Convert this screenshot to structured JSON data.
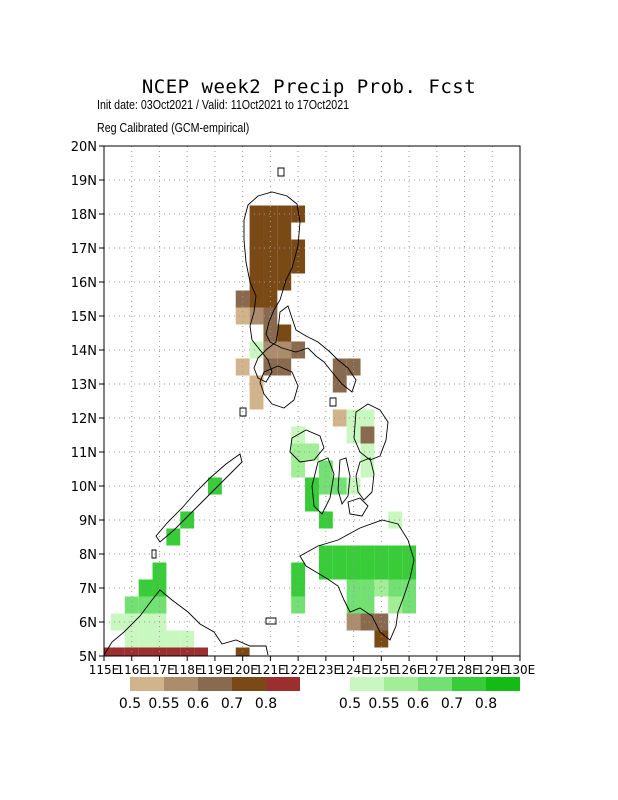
{
  "title": "NCEP week2 Precip Prob. Fcst",
  "subtitle_line1": "Init date: 03Oct2021 / Valid: 11Oct2021 to 17Oct2021",
  "subtitle_line2": "Reg Calibrated (GCM-empirical)",
  "map": {
    "lon_range": [
      115,
      130
    ],
    "lat_range": [
      5,
      20
    ],
    "lat_ticks": [
      "5N",
      "6N",
      "7N",
      "8N",
      "9N",
      "10N",
      "11N",
      "12N",
      "13N",
      "14N",
      "15N",
      "16N",
      "17N",
      "18N",
      "19N",
      "20N"
    ],
    "lon_ticks": [
      "115E",
      "116E",
      "117E",
      "118E",
      "119E",
      "120E",
      "121E",
      "122E",
      "123E",
      "124E",
      "125E",
      "126E",
      "127E",
      "128E",
      "129E",
      "130E"
    ],
    "grid": "dotted",
    "cell_size_deg": 0.5
  },
  "dry_legend": {
    "labels": [
      "0.5",
      "0.55",
      "0.6",
      "0.7",
      "0.8"
    ],
    "colors": [
      "#d2b48c",
      "#ac8c6c",
      "#8a6a4e",
      "#7a4a16",
      "#9b2e2e"
    ]
  },
  "wet_legend": {
    "labels": [
      "0.5",
      "0.55",
      "0.6",
      "0.7",
      "0.8"
    ],
    "colors": [
      "#c8f8c0",
      "#a2ee96",
      "#72e072",
      "#38cc38",
      "#14bb14"
    ]
  },
  "chart_data": {
    "type": "heatmap",
    "title": "NCEP week2 Precip Prob. Fcst",
    "units": "probability",
    "cells": [
      {
        "lon": 120.5,
        "lat": 18,
        "cat": "dry",
        "p": 0.7
      },
      {
        "lon": 121,
        "lat": 18,
        "cat": "dry",
        "p": 0.7
      },
      {
        "lon": 121.5,
        "lat": 18,
        "cat": "dry",
        "p": 0.7
      },
      {
        "lon": 122,
        "lat": 18,
        "cat": "dry",
        "p": 0.7
      },
      {
        "lon": 120.5,
        "lat": 17.5,
        "cat": "dry",
        "p": 0.7
      },
      {
        "lon": 121,
        "lat": 17.5,
        "cat": "dry",
        "p": 0.7
      },
      {
        "lon": 121.5,
        "lat": 17.5,
        "cat": "dry",
        "p": 0.7
      },
      {
        "lon": 120.5,
        "lat": 17,
        "cat": "dry",
        "p": 0.7
      },
      {
        "lon": 121,
        "lat": 17,
        "cat": "dry",
        "p": 0.7
      },
      {
        "lon": 121.5,
        "lat": 17,
        "cat": "dry",
        "p": 0.7
      },
      {
        "lon": 122,
        "lat": 17,
        "cat": "dry",
        "p": 0.7
      },
      {
        "lon": 120.5,
        "lat": 16.5,
        "cat": "dry",
        "p": 0.7
      },
      {
        "lon": 121,
        "lat": 16.5,
        "cat": "dry",
        "p": 0.7
      },
      {
        "lon": 121.5,
        "lat": 16.5,
        "cat": "dry",
        "p": 0.7
      },
      {
        "lon": 122,
        "lat": 16.5,
        "cat": "dry",
        "p": 0.7
      },
      {
        "lon": 120.5,
        "lat": 16,
        "cat": "dry",
        "p": 0.7
      },
      {
        "lon": 121,
        "lat": 16,
        "cat": "dry",
        "p": 0.7
      },
      {
        "lon": 121.5,
        "lat": 16,
        "cat": "dry",
        "p": 0.7
      },
      {
        "lon": 120,
        "lat": 15.5,
        "cat": "dry",
        "p": 0.6
      },
      {
        "lon": 120.5,
        "lat": 15.5,
        "cat": "dry",
        "p": 0.7
      },
      {
        "lon": 121,
        "lat": 15.5,
        "cat": "dry",
        "p": 0.7
      },
      {
        "lon": 120,
        "lat": 15,
        "cat": "dry",
        "p": 0.5
      },
      {
        "lon": 120.5,
        "lat": 15,
        "cat": "dry",
        "p": 0.55
      },
      {
        "lon": 121,
        "lat": 15,
        "cat": "dry",
        "p": 0.6
      },
      {
        "lon": 121,
        "lat": 14.5,
        "cat": "dry",
        "p": 0.6
      },
      {
        "lon": 121.5,
        "lat": 14.5,
        "cat": "dry",
        "p": 0.7
      },
      {
        "lon": 120.5,
        "lat": 14,
        "cat": "wet",
        "p": 0.5
      },
      {
        "lon": 121,
        "lat": 14,
        "cat": "dry",
        "p": 0.55
      },
      {
        "lon": 121.5,
        "lat": 14,
        "cat": "dry",
        "p": 0.55
      },
      {
        "lon": 122,
        "lat": 14,
        "cat": "dry",
        "p": 0.6
      },
      {
        "lon": 120,
        "lat": 13.5,
        "cat": "dry",
        "p": 0.5
      },
      {
        "lon": 121,
        "lat": 13.5,
        "cat": "dry",
        "p": 0.6
      },
      {
        "lon": 121.5,
        "lat": 13.5,
        "cat": "dry",
        "p": 0.6
      },
      {
        "lon": 120.5,
        "lat": 13,
        "cat": "dry",
        "p": 0.5
      },
      {
        "lon": 120.5,
        "lat": 12.5,
        "cat": "dry",
        "p": 0.5
      },
      {
        "lon": 123.5,
        "lat": 13.5,
        "cat": "dry",
        "p": 0.6
      },
      {
        "lon": 124,
        "lat": 13.5,
        "cat": "dry",
        "p": 0.6
      },
      {
        "lon": 123.5,
        "lat": 13,
        "cat": "dry",
        "p": 0.6
      },
      {
        "lon": 123.5,
        "lat": 12,
        "cat": "dry",
        "p": 0.5
      },
      {
        "lon": 124.5,
        "lat": 11.5,
        "cat": "dry",
        "p": 0.6
      },
      {
        "lon": 124,
        "lat": 12,
        "cat": "wet",
        "p": 0.5
      },
      {
        "lon": 124.5,
        "lat": 12,
        "cat": "wet",
        "p": 0.5
      },
      {
        "lon": 124,
        "lat": 11.5,
        "cat": "wet",
        "p": 0.5
      },
      {
        "lon": 124.5,
        "lat": 11,
        "cat": "wet",
        "p": 0.5
      },
      {
        "lon": 124.5,
        "lat": 10.5,
        "cat": "wet",
        "p": 0.5
      },
      {
        "lon": 122,
        "lat": 11.5,
        "cat": "wet",
        "p": 0.5
      },
      {
        "lon": 122,
        "lat": 11,
        "cat": "wet",
        "p": 0.55
      },
      {
        "lon": 122.5,
        "lat": 11,
        "cat": "wet",
        "p": 0.55
      },
      {
        "lon": 122,
        "lat": 10.5,
        "cat": "wet",
        "p": 0.55
      },
      {
        "lon": 123,
        "lat": 10.5,
        "cat": "wet",
        "p": 0.6
      },
      {
        "lon": 123,
        "lat": 10,
        "cat": "wet",
        "p": 0.6
      },
      {
        "lon": 123.5,
        "lat": 10,
        "cat": "wet",
        "p": 0.6
      },
      {
        "lon": 122.5,
        "lat": 10,
        "cat": "wet",
        "p": 0.7
      },
      {
        "lon": 124,
        "lat": 10,
        "cat": "wet",
        "p": 0.5
      },
      {
        "lon": 122.5,
        "lat": 9.5,
        "cat": "wet",
        "p": 0.7
      },
      {
        "lon": 123,
        "lat": 9,
        "cat": "wet",
        "p": 0.7
      },
      {
        "lon": 119,
        "lat": 10,
        "cat": "wet",
        "p": 0.7
      },
      {
        "lon": 118,
        "lat": 9,
        "cat": "wet",
        "p": 0.7
      },
      {
        "lon": 117.5,
        "lat": 8.5,
        "cat": "wet",
        "p": 0.7
      },
      {
        "lon": 125.5,
        "lat": 9,
        "cat": "wet",
        "p": 0.5
      },
      {
        "lon": 123,
        "lat": 8,
        "cat": "wet",
        "p": 0.7
      },
      {
        "lon": 123.5,
        "lat": 8,
        "cat": "wet",
        "p": 0.7
      },
      {
        "lon": 124,
        "lat": 8,
        "cat": "wet",
        "p": 0.7
      },
      {
        "lon": 124.5,
        "lat": 8,
        "cat": "wet",
        "p": 0.7
      },
      {
        "lon": 125,
        "lat": 8,
        "cat": "wet",
        "p": 0.7
      },
      {
        "lon": 125.5,
        "lat": 8,
        "cat": "wet",
        "p": 0.7
      },
      {
        "lon": 126,
        "lat": 8,
        "cat": "wet",
        "p": 0.7
      },
      {
        "lon": 123,
        "lat": 7.5,
        "cat": "wet",
        "p": 0.7
      },
      {
        "lon": 123.5,
        "lat": 7.5,
        "cat": "wet",
        "p": 0.7
      },
      {
        "lon": 124,
        "lat": 7.5,
        "cat": "wet",
        "p": 0.7
      },
      {
        "lon": 124.5,
        "lat": 7.5,
        "cat": "wet",
        "p": 0.7
      },
      {
        "lon": 125,
        "lat": 7.5,
        "cat": "wet",
        "p": 0.7
      },
      {
        "lon": 125.5,
        "lat": 7.5,
        "cat": "wet",
        "p": 0.7
      },
      {
        "lon": 126,
        "lat": 7.5,
        "cat": "wet",
        "p": 0.7
      },
      {
        "lon": 124,
        "lat": 7,
        "cat": "wet",
        "p": 0.6
      },
      {
        "lon": 124.5,
        "lat": 7,
        "cat": "wet",
        "p": 0.6
      },
      {
        "lon": 125,
        "lat": 7,
        "cat": "wet",
        "p": 0.55
      },
      {
        "lon": 125.5,
        "lat": 7,
        "cat": "wet",
        "p": 0.6
      },
      {
        "lon": 126,
        "lat": 7,
        "cat": "wet",
        "p": 0.6
      },
      {
        "lon": 124,
        "lat": 6.5,
        "cat": "wet",
        "p": 0.6
      },
      {
        "lon": 124.5,
        "lat": 6.5,
        "cat": "wet",
        "p": 0.6
      },
      {
        "lon": 125.5,
        "lat": 6.5,
        "cat": "wet",
        "p": 0.55
      },
      {
        "lon": 126,
        "lat": 6.5,
        "cat": "wet",
        "p": 0.6
      },
      {
        "lon": 122,
        "lat": 7.5,
        "cat": "wet",
        "p": 0.7
      },
      {
        "lon": 122,
        "lat": 7,
        "cat": "wet",
        "p": 0.7
      },
      {
        "lon": 122,
        "lat": 6.5,
        "cat": "wet",
        "p": 0.6
      },
      {
        "lon": 124,
        "lat": 6,
        "cat": "dry",
        "p": 0.55
      },
      {
        "lon": 124.5,
        "lat": 6,
        "cat": "dry",
        "p": 0.6
      },
      {
        "lon": 125,
        "lat": 6,
        "cat": "dry",
        "p": 0.6
      },
      {
        "lon": 125,
        "lat": 5.5,
        "cat": "dry",
        "p": 0.7
      },
      {
        "lon": 117,
        "lat": 7.5,
        "cat": "wet",
        "p": 0.7
      },
      {
        "lon": 117,
        "lat": 7,
        "cat": "wet",
        "p": 0.7
      },
      {
        "lon": 116.5,
        "lat": 7,
        "cat": "wet",
        "p": 0.7
      },
      {
        "lon": 116,
        "lat": 6.5,
        "cat": "wet",
        "p": 0.6
      },
      {
        "lon": 116.5,
        "lat": 6.5,
        "cat": "wet",
        "p": 0.6
      },
      {
        "lon": 117,
        "lat": 6.5,
        "cat": "wet",
        "p": 0.6
      },
      {
        "lon": 115.5,
        "lat": 6,
        "cat": "wet",
        "p": 0.5
      },
      {
        "lon": 116,
        "lat": 6,
        "cat": "wet",
        "p": 0.5
      },
      {
        "lon": 116.5,
        "lat": 6,
        "cat": "wet",
        "p": 0.5
      },
      {
        "lon": 117,
        "lat": 6,
        "cat": "wet",
        "p": 0.5
      },
      {
        "lon": 116,
        "lat": 5.5,
        "cat": "wet",
        "p": 0.5
      },
      {
        "lon": 116.5,
        "lat": 5.5,
        "cat": "wet",
        "p": 0.5
      },
      {
        "lon": 117,
        "lat": 5.5,
        "cat": "wet",
        "p": 0.5
      },
      {
        "lon": 117.5,
        "lat": 5.5,
        "cat": "wet",
        "p": 0.5
      },
      {
        "lon": 118,
        "lat": 5.5,
        "cat": "wet",
        "p": 0.5
      },
      {
        "lon": 115,
        "lat": 5,
        "cat": "dry",
        "p": 0.8
      },
      {
        "lon": 115.5,
        "lat": 5,
        "cat": "dry",
        "p": 0.8
      },
      {
        "lon": 116,
        "lat": 5,
        "cat": "dry",
        "p": 0.8
      },
      {
        "lon": 116.5,
        "lat": 5,
        "cat": "dry",
        "p": 0.8
      },
      {
        "lon": 117,
        "lat": 5,
        "cat": "dry",
        "p": 0.8
      },
      {
        "lon": 117.5,
        "lat": 5,
        "cat": "dry",
        "p": 0.8
      },
      {
        "lon": 118,
        "lat": 5,
        "cat": "dry",
        "p": 0.8
      },
      {
        "lon": 118.5,
        "lat": 5,
        "cat": "dry",
        "p": 0.8
      },
      {
        "lon": 120,
        "lat": 5,
        "cat": "dry",
        "p": 0.7
      }
    ]
  }
}
